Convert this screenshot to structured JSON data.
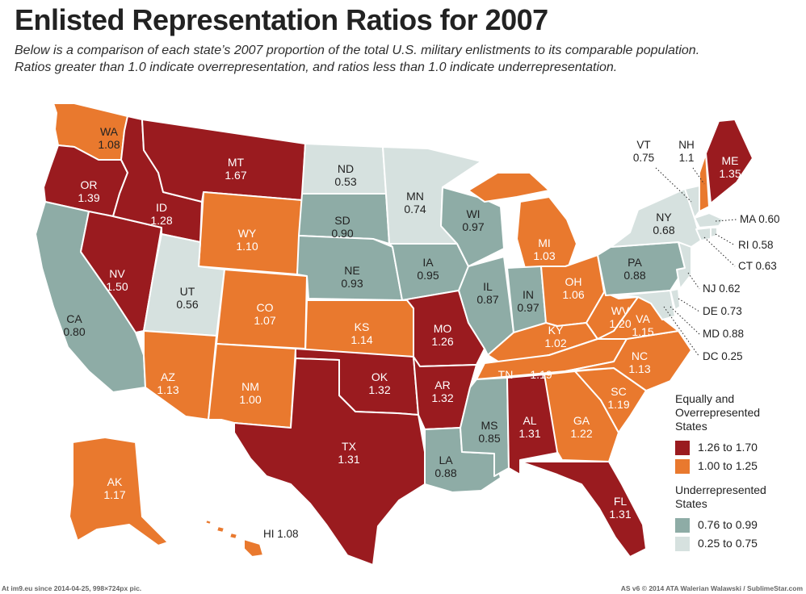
{
  "title": "Enlisted Representation Ratios for 2007",
  "subtitle_line1": "Below is a comparison of each state’s 2007 proportion of the total U.S. military enlistments to its comparable population.",
  "subtitle_line2": "Ratios greater than 1.0 indicate overrepresentation, and ratios less than 1.0 indicate underrepresentation.",
  "colors": {
    "high": "#9a1b1f",
    "mid": "#e9792e",
    "low": "#8eaca6",
    "vlow": "#d6e1df"
  },
  "states": {
    "WA": "1.08",
    "OR": "1.39",
    "CA": "0.80",
    "NV": "1.50",
    "ID": "1.28",
    "MT": "1.67",
    "WY": "1.10",
    "UT": "0.56",
    "AZ": "1.13",
    "CO": "1.07",
    "NM": "1.00",
    "ND": "0.53",
    "SD": "0.90",
    "NE": "0.93",
    "KS": "1.14",
    "OK": "1.32",
    "TX": "1.31",
    "MN": "0.74",
    "IA": "0.95",
    "MO": "1.26",
    "AR": "1.32",
    "LA": "0.88",
    "WI": "0.97",
    "IL": "0.87",
    "MI": "1.03",
    "IN": "0.97",
    "OH": "1.06",
    "KY": "1.02",
    "TN": "1.19",
    "MS": "0.85",
    "AL": "1.31",
    "GA": "1.22",
    "FL": "1.31",
    "SC": "1.19",
    "NC": "1.13",
    "VA": "1.15",
    "WV": "1.20",
    "PA": "0.88",
    "NY": "0.68",
    "ME": "1.35",
    "VT": "0.75",
    "NH": "1.1",
    "MA": "0.60",
    "RI": "0.58",
    "CT": "0.63",
    "NJ": "0.62",
    "DE": "0.73",
    "MD": "0.88",
    "DC": "0.25",
    "AK": "1.17",
    "HI": "1.08"
  },
  "legend": {
    "over_heading": "Equally and Overrepresented States",
    "over_items": [
      "1.26 to 1.70",
      "1.00 to 1.25"
    ],
    "under_heading": "Underrepresented States",
    "under_items": [
      "0.76 to 0.99",
      "0.25 to 0.75"
    ]
  },
  "footer_left": "At im9.eu  since 2014-04-25, 998×724px pic.",
  "footer_right": "AS v6 © 2014 ATA Walerian Walawski / SublimeStar.com"
}
